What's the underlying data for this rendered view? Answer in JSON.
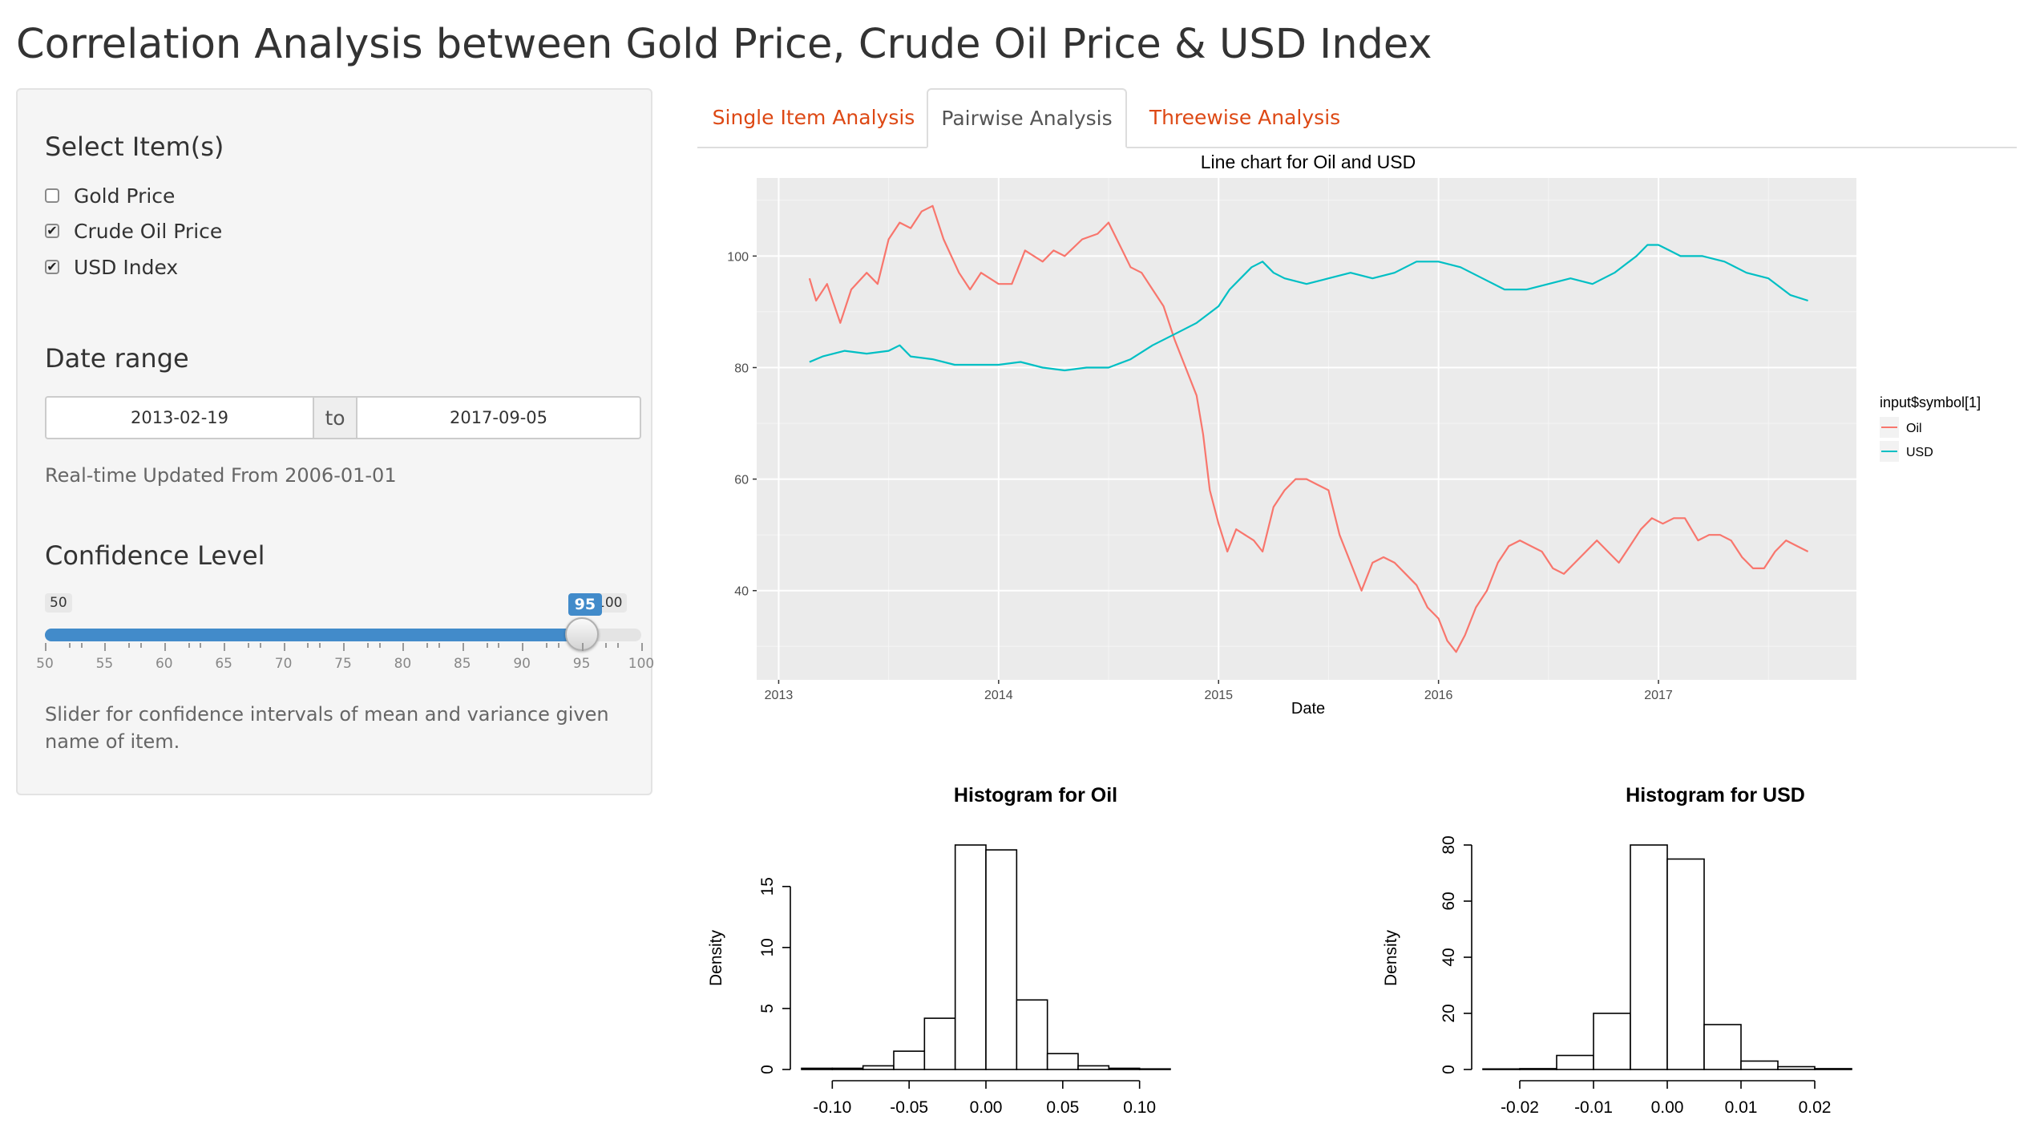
{
  "page": {
    "title": "Correlation Analysis between Gold Price, Crude Oil Price & USD Index"
  },
  "sidebar": {
    "select_heading": "Select Item(s)",
    "items": [
      {
        "label": "Gold Price",
        "checked": false
      },
      {
        "label": "Crude Oil Price",
        "checked": true
      },
      {
        "label": "USD Index",
        "checked": true
      }
    ],
    "date_heading": "Date range",
    "date_start": "2013-02-19",
    "date_sep": "to",
    "date_end": "2017-09-05",
    "date_help": "Real-time Updated From 2006-01-01",
    "confidence_heading": "Confidence Level",
    "slider": {
      "min": 50,
      "max": 100,
      "value": 95,
      "min_label": "50",
      "max_label": "100",
      "value_label": "95",
      "tick_labels": [
        "50",
        "55",
        "60",
        "65",
        "70",
        "75",
        "80",
        "85",
        "90",
        "95",
        "100"
      ]
    },
    "slider_help": "Slider for confidence intervals of mean and variance given name of item."
  },
  "tabs": [
    {
      "label": "Single Item Analysis",
      "active": false
    },
    {
      "label": "Pairwise Analysis",
      "active": true
    },
    {
      "label": "Threewise Analysis",
      "active": false
    }
  ],
  "chart_data": [
    {
      "type": "line",
      "title": "Line chart for Oil and USD",
      "xlabel": "Date",
      "ylabel": "",
      "x_tick_labels": [
        "2013",
        "2014",
        "2015",
        "2016",
        "2017"
      ],
      "y_tick_labels": [
        "40",
        "60",
        "80",
        "100"
      ],
      "xlim": [
        2012.9,
        2017.9
      ],
      "ylim": [
        24,
        114
      ],
      "grid": true,
      "background": "#ebebeb",
      "legend": {
        "title": "input$symbol[1]",
        "position": "right"
      },
      "series": [
        {
          "name": "Oil",
          "color": "#f8766d",
          "points": [
            [
              2013.14,
              96
            ],
            [
              2013.17,
              92
            ],
            [
              2013.22,
              95
            ],
            [
              2013.28,
              88
            ],
            [
              2013.33,
              94
            ],
            [
              2013.4,
              97
            ],
            [
              2013.45,
              95
            ],
            [
              2013.5,
              103
            ],
            [
              2013.55,
              106
            ],
            [
              2013.6,
              105
            ],
            [
              2013.65,
              108
            ],
            [
              2013.7,
              109
            ],
            [
              2013.75,
              103
            ],
            [
              2013.82,
              97
            ],
            [
              2013.87,
              94
            ],
            [
              2013.92,
              97
            ],
            [
              2014.0,
              95
            ],
            [
              2014.06,
              95
            ],
            [
              2014.12,
              101
            ],
            [
              2014.2,
              99
            ],
            [
              2014.25,
              101
            ],
            [
              2014.3,
              100
            ],
            [
              2014.38,
              103
            ],
            [
              2014.45,
              104
            ],
            [
              2014.5,
              106
            ],
            [
              2014.55,
              102
            ],
            [
              2014.6,
              98
            ],
            [
              2014.65,
              97
            ],
            [
              2014.7,
              94
            ],
            [
              2014.75,
              91
            ],
            [
              2014.8,
              85
            ],
            [
              2014.85,
              80
            ],
            [
              2014.9,
              75
            ],
            [
              2014.93,
              68
            ],
            [
              2014.96,
              58
            ],
            [
              2015.0,
              52
            ],
            [
              2015.04,
              47
            ],
            [
              2015.08,
              51
            ],
            [
              2015.12,
              50
            ],
            [
              2015.16,
              49
            ],
            [
              2015.2,
              47
            ],
            [
              2015.25,
              55
            ],
            [
              2015.3,
              58
            ],
            [
              2015.35,
              60
            ],
            [
              2015.4,
              60
            ],
            [
              2015.45,
              59
            ],
            [
              2015.5,
              58
            ],
            [
              2015.55,
              50
            ],
            [
              2015.6,
              45
            ],
            [
              2015.65,
              40
            ],
            [
              2015.7,
              45
            ],
            [
              2015.75,
              46
            ],
            [
              2015.8,
              45
            ],
            [
              2015.85,
              43
            ],
            [
              2015.9,
              41
            ],
            [
              2015.95,
              37
            ],
            [
              2016.0,
              35
            ],
            [
              2016.04,
              31
            ],
            [
              2016.08,
              29
            ],
            [
              2016.12,
              32
            ],
            [
              2016.17,
              37
            ],
            [
              2016.22,
              40
            ],
            [
              2016.27,
              45
            ],
            [
              2016.32,
              48
            ],
            [
              2016.37,
              49
            ],
            [
              2016.42,
              48
            ],
            [
              2016.47,
              47
            ],
            [
              2016.52,
              44
            ],
            [
              2016.57,
              43
            ],
            [
              2016.62,
              45
            ],
            [
              2016.67,
              47
            ],
            [
              2016.72,
              49
            ],
            [
              2016.77,
              47
            ],
            [
              2016.82,
              45
            ],
            [
              2016.87,
              48
            ],
            [
              2016.92,
              51
            ],
            [
              2016.97,
              53
            ],
            [
              2017.02,
              52
            ],
            [
              2017.07,
              53
            ],
            [
              2017.12,
              53
            ],
            [
              2017.18,
              49
            ],
            [
              2017.23,
              50
            ],
            [
              2017.28,
              50
            ],
            [
              2017.33,
              49
            ],
            [
              2017.38,
              46
            ],
            [
              2017.43,
              44
            ],
            [
              2017.48,
              44
            ],
            [
              2017.53,
              47
            ],
            [
              2017.58,
              49
            ],
            [
              2017.63,
              48
            ],
            [
              2017.68,
              47
            ]
          ]
        },
        {
          "name": "USD",
          "color": "#00bfc4",
          "points": [
            [
              2013.14,
              81
            ],
            [
              2013.2,
              82
            ],
            [
              2013.3,
              83
            ],
            [
              2013.4,
              82.5
            ],
            [
              2013.5,
              83
            ],
            [
              2013.55,
              84
            ],
            [
              2013.6,
              82
            ],
            [
              2013.7,
              81.5
            ],
            [
              2013.8,
              80.5
            ],
            [
              2013.9,
              80.5
            ],
            [
              2014.0,
              80.5
            ],
            [
              2014.1,
              81
            ],
            [
              2014.2,
              80
            ],
            [
              2014.3,
              79.5
            ],
            [
              2014.4,
              80
            ],
            [
              2014.5,
              80
            ],
            [
              2014.6,
              81.5
            ],
            [
              2014.7,
              84
            ],
            [
              2014.8,
              86
            ],
            [
              2014.9,
              88
            ],
            [
              2015.0,
              91
            ],
            [
              2015.05,
              94
            ],
            [
              2015.1,
              96
            ],
            [
              2015.15,
              98
            ],
            [
              2015.2,
              99
            ],
            [
              2015.25,
              97
            ],
            [
              2015.3,
              96
            ],
            [
              2015.4,
              95
            ],
            [
              2015.5,
              96
            ],
            [
              2015.6,
              97
            ],
            [
              2015.7,
              96
            ],
            [
              2015.8,
              97
            ],
            [
              2015.9,
              99
            ],
            [
              2016.0,
              99
            ],
            [
              2016.1,
              98
            ],
            [
              2016.2,
              96
            ],
            [
              2016.3,
              94
            ],
            [
              2016.4,
              94
            ],
            [
              2016.5,
              95
            ],
            [
              2016.6,
              96
            ],
            [
              2016.7,
              95
            ],
            [
              2016.8,
              97
            ],
            [
              2016.9,
              100
            ],
            [
              2016.95,
              102
            ],
            [
              2017.0,
              102
            ],
            [
              2017.05,
              101
            ],
            [
              2017.1,
              100
            ],
            [
              2017.2,
              100
            ],
            [
              2017.3,
              99
            ],
            [
              2017.4,
              97
            ],
            [
              2017.5,
              96
            ],
            [
              2017.6,
              93
            ],
            [
              2017.68,
              92
            ]
          ]
        }
      ]
    },
    {
      "type": "bar",
      "title": "Histogram for Oil",
      "xlabel": "",
      "ylabel": "Density",
      "x_tick_labels": [
        "-0.10",
        "-0.05",
        "0.00",
        "0.05",
        "0.10"
      ],
      "y_tick_labels": [
        "0",
        "5",
        "10",
        "15"
      ],
      "bin_edges": [
        -0.12,
        -0.1,
        -0.08,
        -0.06,
        -0.04,
        -0.02,
        0,
        0.02,
        0.04,
        0.06,
        0.08,
        0.1,
        0.12
      ],
      "values": [
        0.1,
        0.1,
        0.3,
        1.5,
        4.2,
        18.4,
        18,
        5.7,
        1.3,
        0.3,
        0.1,
        0.05
      ],
      "xlim": [
        -0.12,
        0.12
      ],
      "ylim": [
        0,
        18.4
      ]
    },
    {
      "type": "bar",
      "title": "Histogram for USD",
      "xlabel": "",
      "ylabel": "Density",
      "x_tick_labels": [
        "-0.02",
        "-0.01",
        "0.00",
        "0.01",
        "0.02"
      ],
      "y_tick_labels": [
        "0",
        "20",
        "40",
        "60",
        "80"
      ],
      "bin_edges": [
        -0.025,
        -0.02,
        -0.015,
        -0.01,
        -0.005,
        0,
        0.005,
        0.01,
        0.015,
        0.02,
        0.025
      ],
      "values": [
        0.2,
        0.3,
        5,
        20,
        80,
        75,
        16,
        3,
        1,
        0.3
      ],
      "xlim": [
        -0.025,
        0.025
      ],
      "ylim": [
        0,
        80
      ]
    }
  ]
}
